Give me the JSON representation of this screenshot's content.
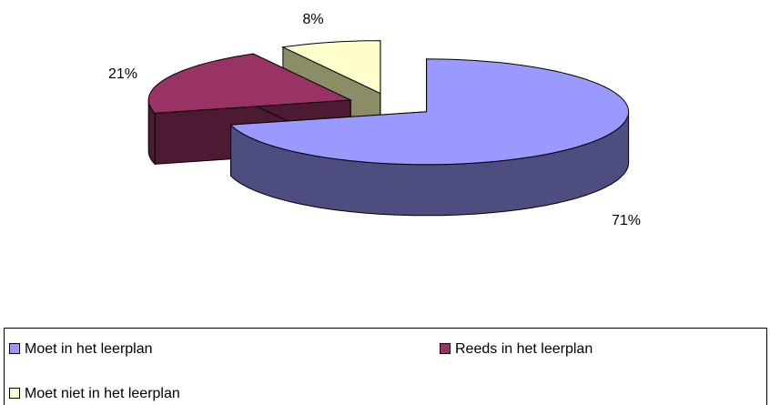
{
  "chart_data": {
    "type": "pie",
    "categories": [
      "Moet in het leerplan",
      "Reeds in het leerplan",
      "Moet niet in het leerplan"
    ],
    "values": [
      71,
      21,
      8
    ],
    "value_labels": [
      "71%",
      "21%",
      "8%"
    ],
    "colors": [
      "#9999ff",
      "#993366",
      "#ffffcc"
    ],
    "side_colors": [
      "#4d4d80",
      "#4d1a33",
      "#8c8c66"
    ]
  }
}
